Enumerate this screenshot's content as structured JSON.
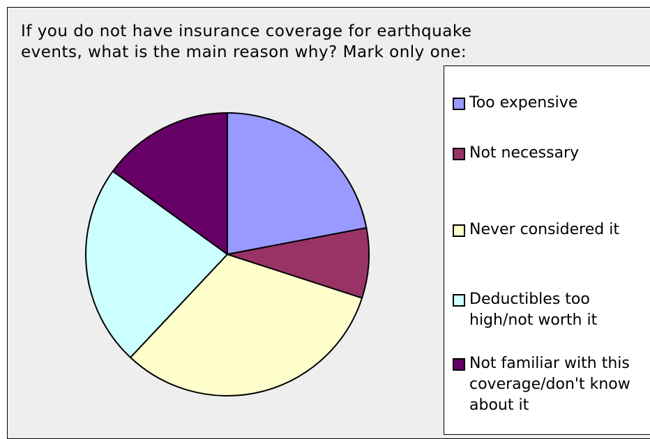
{
  "chart_data": {
    "type": "pie",
    "title_lines": [
      "If you do not have insurance coverage for earthquake",
      "events, what is the main reason why?  Mark only one:"
    ],
    "categories": [
      "Too expensive",
      "Not necessary",
      "Never considered it",
      "Deductibles too\nhigh/not worth it",
      "Not familiar with this\ncoverage/don't know\nabout it"
    ],
    "values": [
      22,
      8,
      32,
      23,
      15
    ],
    "colors": [
      "#9999ff",
      "#993366",
      "#ffffcc",
      "#ccffff",
      "#660066"
    ],
    "legend_position": "right"
  }
}
